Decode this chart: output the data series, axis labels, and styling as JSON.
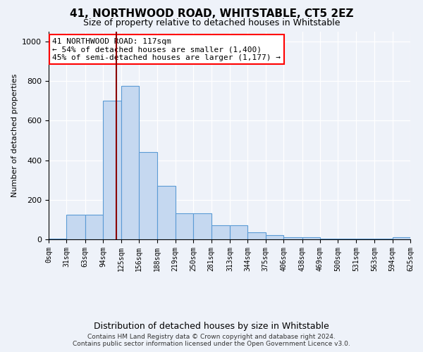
{
  "title": "41, NORTHWOOD ROAD, WHITSTABLE, CT5 2EZ",
  "subtitle": "Size of property relative to detached houses in Whitstable",
  "xlabel": "Distribution of detached houses by size in Whitstable",
  "ylabel": "Number of detached properties",
  "bar_edges": [
    0,
    31,
    63,
    94,
    125,
    156,
    188,
    219,
    250,
    281,
    313,
    344,
    375,
    406,
    438,
    469,
    500,
    531,
    563,
    594,
    625
  ],
  "bar_heights": [
    5,
    125,
    125,
    700,
    775,
    440,
    270,
    130,
    130,
    70,
    70,
    35,
    20,
    10,
    10,
    5,
    5,
    5,
    5,
    10
  ],
  "tick_labels": [
    "0sqm",
    "31sqm",
    "63sqm",
    "94sqm",
    "125sqm",
    "156sqm",
    "188sqm",
    "219sqm",
    "250sqm",
    "281sqm",
    "313sqm",
    "344sqm",
    "375sqm",
    "406sqm",
    "438sqm",
    "469sqm",
    "500sqm",
    "531sqm",
    "563sqm",
    "594sqm",
    "625sqm"
  ],
  "bar_color": "#c5d8f0",
  "bar_edge_color": "#5b9bd5",
  "red_line_x": 117,
  "ylim": [
    0,
    1050
  ],
  "annotation_line1": "41 NORTHWOOD ROAD: 117sqm",
  "annotation_line2": "← 54% of detached houses are smaller (1,400)",
  "annotation_line3": "45% of semi-detached houses are larger (1,177) →",
  "footer_line1": "Contains HM Land Registry data © Crown copyright and database right 2024.",
  "footer_line2": "Contains public sector information licensed under the Open Government Licence v3.0.",
  "background_color": "#eef2f9",
  "grid_color": "#ffffff",
  "title_fontsize": 11,
  "subtitle_fontsize": 9,
  "ylabel_fontsize": 8,
  "ytick_fontsize": 8,
  "xtick_fontsize": 7,
  "annotation_fontsize": 8,
  "xlabel_fontsize": 9,
  "footer_fontsize": 6.5
}
